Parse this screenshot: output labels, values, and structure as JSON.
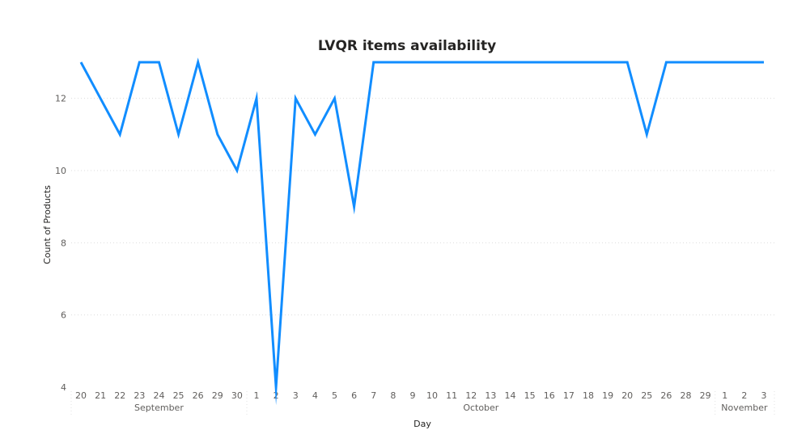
{
  "chart_data": {
    "type": "line",
    "title": "LVQR items availability",
    "xlabel": "Day",
    "ylabel": "Count of Products",
    "ylim": [
      4,
      13
    ],
    "yticks": [
      4,
      6,
      8,
      10,
      12
    ],
    "grid": true,
    "color": "#118DFF",
    "categories": [
      "20",
      "21",
      "22",
      "23",
      "24",
      "25",
      "26",
      "29",
      "30",
      "1",
      "2",
      "3",
      "4",
      "5",
      "6",
      "7",
      "8",
      "9",
      "10",
      "11",
      "12",
      "13",
      "14",
      "15",
      "16",
      "17",
      "18",
      "19",
      "20",
      "25",
      "26",
      "28",
      "29",
      "1",
      "2",
      "3"
    ],
    "groups": [
      {
        "name": "September",
        "count": 9
      },
      {
        "name": "October",
        "count": 24
      },
      {
        "name": "November",
        "count": 3
      }
    ],
    "series": [
      {
        "values": [
          13,
          12,
          11,
          13,
          13,
          11,
          13,
          11,
          10,
          12,
          4,
          12,
          11,
          12,
          9,
          13,
          13,
          13,
          13,
          13,
          13,
          13,
          13,
          13,
          13,
          13,
          13,
          13,
          13,
          11,
          13,
          13,
          13,
          13,
          13,
          13
        ]
      }
    ]
  }
}
